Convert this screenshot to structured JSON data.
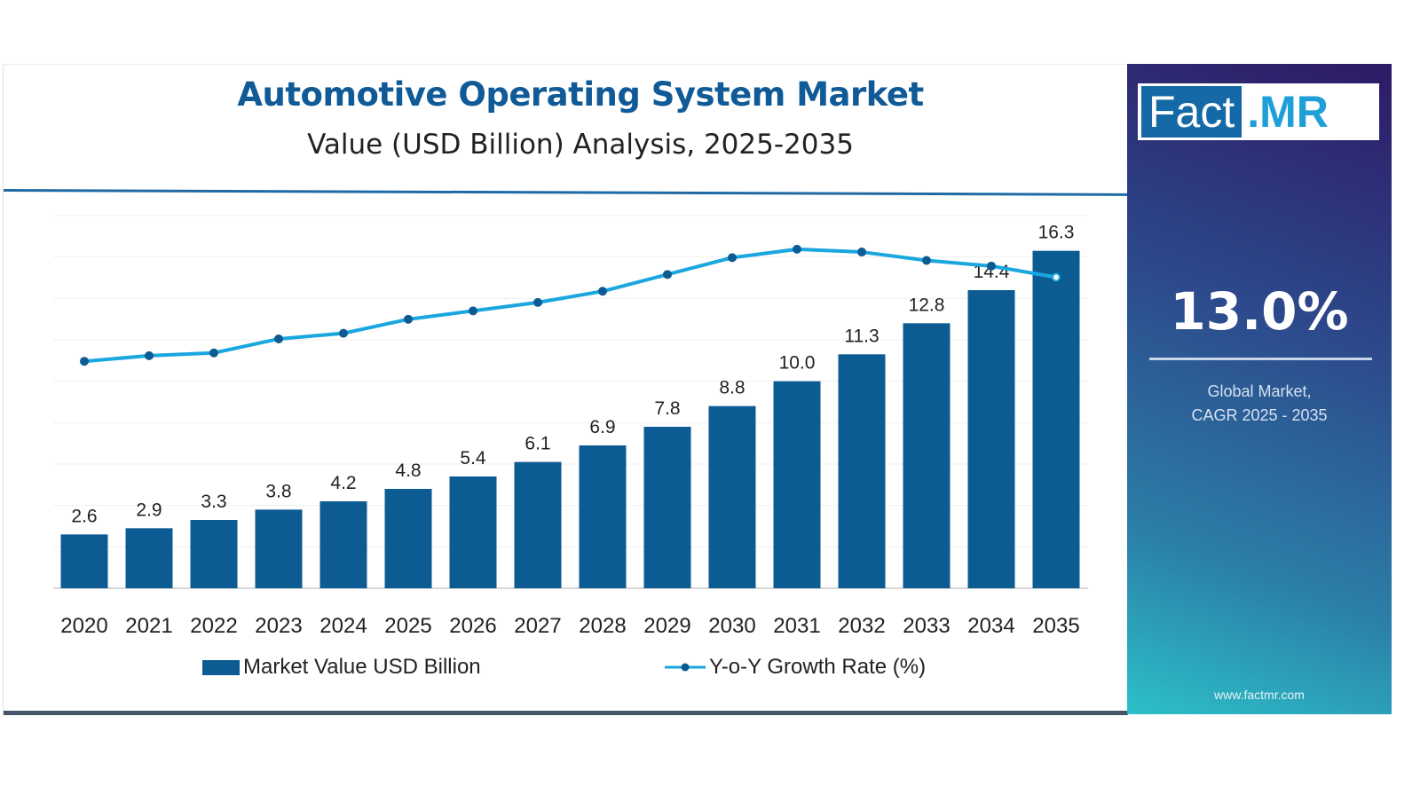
{
  "header": {
    "title": "Automotive Operating System Market",
    "subtitle": "Value (USD Billion) Analysis, 2025-2035"
  },
  "side_panel": {
    "brand_left": "Fact",
    "brand_right": ".MR",
    "cagr_value": "13.0%",
    "cagr_label_line1": "Global Market,",
    "cagr_label_line2": "CAGR 2025 - 2035",
    "website": "www.factmr.com"
  },
  "colors": {
    "bar": "#0d5b93",
    "line": "#1aa6df",
    "marker": "#0d5b93",
    "title": "#0f5a97"
  },
  "chart_data": {
    "type": "bar",
    "title": "Automotive Operating System Market",
    "subtitle": "Value (USD Billion) Analysis, 2025-2035",
    "categories": [
      "2020",
      "2021",
      "2022",
      "2023",
      "2024",
      "2025",
      "2026",
      "2027",
      "2028",
      "2029",
      "2030",
      "2031",
      "2032",
      "2033",
      "2034",
      "2035"
    ],
    "ylim": [
      0,
      18
    ],
    "grid": true,
    "legend_position": "bottom",
    "series": [
      {
        "name": "Market Value USD Billion",
        "type": "bar",
        "values": [
          2.6,
          2.9,
          3.3,
          3.8,
          4.2,
          4.8,
          5.4,
          6.1,
          6.9,
          7.8,
          8.8,
          10.0,
          11.3,
          12.8,
          14.4,
          16.3
        ],
        "labels": [
          "2.6",
          "2.9",
          "3.3",
          "3.8",
          "4.2",
          "4.8",
          "5.4",
          "6.1",
          "6.9",
          "7.8",
          "8.8",
          "10.0",
          "11.3",
          "12.8",
          "14.4",
          "16.3"
        ]
      },
      {
        "name": "Y-o-Y Growth Rate (%)",
        "type": "line",
        "axis": "hidden-secondary",
        "ylim": [
          1.9,
          15.2
        ],
        "values": [
          10.0,
          10.2,
          10.3,
          10.8,
          11.0,
          11.5,
          11.8,
          12.1,
          12.5,
          13.1,
          13.7,
          14.0,
          13.9,
          13.6,
          13.4,
          13.0
        ]
      }
    ]
  }
}
